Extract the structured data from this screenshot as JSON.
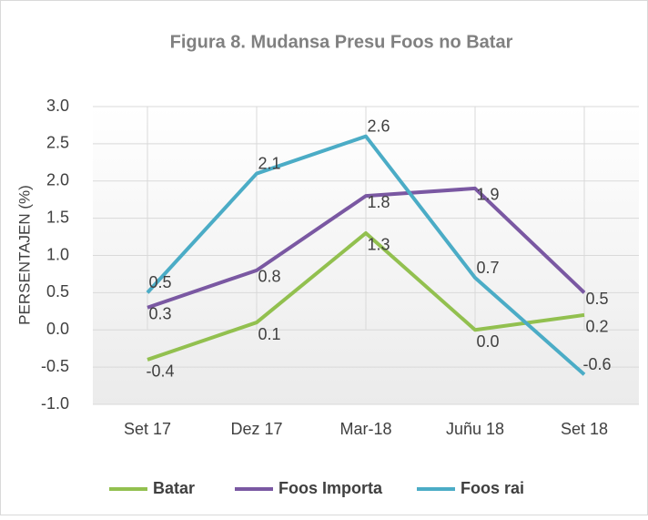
{
  "chart_data": {
    "type": "line",
    "title": "Figura 8. Mudansa Presu Foos no  Batar",
    "y_label": "PERSENTAJEN (%)",
    "categories": [
      "Set 17",
      "Dez 17",
      "Mar-18",
      "Juñu 18",
      "Set 18"
    ],
    "series": [
      {
        "name": "Batar",
        "color": "#92c04f",
        "values": [
          -0.4,
          0.1,
          1.3,
          0,
          0.2
        ],
        "value_labels": [
          "-0.4",
          "0.1",
          "1.3",
          "0.0",
          "0.2"
        ]
      },
      {
        "name": "Foos Importa",
        "color": "#7a58a2",
        "values": [
          0.3,
          0.8,
          1.8,
          1.9,
          0.5
        ]
      },
      {
        "name": "Foos rai",
        "color": "#4bacc6",
        "values": [
          0.5,
          2.1,
          2.6,
          0.7,
          -0.6
        ]
      }
    ],
    "ylim": [
      -1,
      3
    ],
    "yticks": [
      {
        "value": -1,
        "label": "-1.0"
      },
      -0.5,
      {
        "value": 0,
        "label": "0.0"
      },
      0.5,
      {
        "value": 1,
        "label": "1.0"
      },
      1.5,
      {
        "value": 2,
        "label": "2.0"
      },
      2.5,
      {
        "value": 3,
        "label": "3.0"
      }
    ],
    "grid": true,
    "legend": "bottom"
  }
}
